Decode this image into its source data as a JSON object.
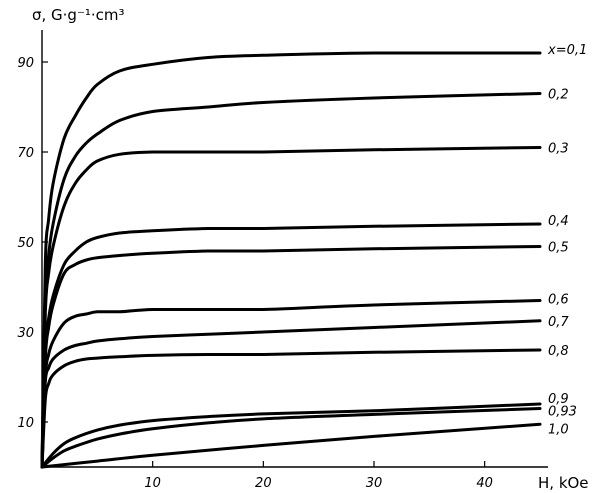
{
  "chart_data": {
    "type": "line",
    "ylabel": "σ, G·g⁻¹·cm³",
    "xlabel": "H, kOe",
    "xlim": [
      0,
      45
    ],
    "ylim": [
      0,
      100
    ],
    "x_ticks": [
      10,
      20,
      30,
      40
    ],
    "y_ticks": [
      10,
      30,
      50,
      70,
      90
    ],
    "grid": false,
    "series": [
      {
        "name": "x=0,1",
        "x": [
          0,
          0.3,
          0.6,
          1,
          2,
          3,
          4,
          5,
          7,
          10,
          15,
          20,
          30,
          45
        ],
        "y": [
          0,
          45,
          55,
          63,
          73,
          78,
          82,
          85,
          88,
          89.5,
          91,
          91.5,
          92,
          92
        ]
      },
      {
        "name": "0,2",
        "x": [
          0,
          0.3,
          0.6,
          1,
          2,
          3,
          4,
          5,
          7,
          10,
          15,
          20,
          30,
          45
        ],
        "y": [
          0,
          38,
          47,
          54,
          64,
          69,
          72,
          74,
          77,
          79,
          80,
          81,
          82,
          83
        ]
      },
      {
        "name": "0,3",
        "x": [
          0,
          0.3,
          0.6,
          1,
          2,
          3,
          4,
          5,
          7,
          10,
          15,
          20,
          30,
          45
        ],
        "y": [
          0,
          34,
          43,
          49,
          58,
          63,
          66,
          68,
          69.5,
          70,
          70,
          70,
          70.5,
          71
        ]
      },
      {
        "name": "0,4",
        "x": [
          0,
          0.3,
          0.6,
          1,
          2,
          3,
          4,
          5,
          7,
          10,
          15,
          20,
          30,
          45
        ],
        "y": [
          0,
          26,
          33,
          38,
          45,
          48,
          50,
          51,
          52,
          52.5,
          53,
          53,
          53.5,
          54
        ]
      },
      {
        "name": "0,5",
        "x": [
          0,
          0.3,
          0.6,
          1,
          2,
          3,
          4,
          5,
          7,
          10,
          15,
          20,
          30,
          45
        ],
        "y": [
          0,
          24,
          31,
          36,
          43,
          45,
          46,
          46.5,
          47,
          47.5,
          48,
          48,
          48.5,
          49
        ]
      },
      {
        "name": "0,6",
        "x": [
          0,
          0.3,
          0.6,
          1,
          2,
          3,
          4,
          5,
          7,
          10,
          15,
          20,
          30,
          45
        ],
        "y": [
          0,
          20,
          25,
          28,
          32,
          33.5,
          34,
          34.5,
          34.5,
          35,
          35,
          35,
          36,
          37
        ]
      },
      {
        "name": "0,7",
        "x": [
          0,
          0.3,
          0.6,
          1,
          2,
          3,
          4,
          5,
          7,
          10,
          15,
          20,
          30,
          45
        ],
        "y": [
          0,
          19,
          22,
          24,
          26,
          27,
          27.5,
          28,
          28.5,
          29,
          29.5,
          30,
          31,
          32.5
        ]
      },
      {
        "name": "0,8",
        "x": [
          0,
          0.3,
          0.6,
          1,
          2,
          3,
          4,
          5,
          7,
          10,
          15,
          20,
          30,
          45
        ],
        "y": [
          0,
          15,
          18.5,
          20.5,
          22.5,
          23.5,
          24,
          24.2,
          24.5,
          24.8,
          25,
          25,
          25.5,
          26
        ]
      },
      {
        "name": "0,9",
        "x": [
          0,
          1,
          2,
          3,
          5,
          7,
          10,
          15,
          20,
          30,
          45
        ],
        "y": [
          0,
          3,
          5.2,
          6.5,
          8.2,
          9.3,
          10.3,
          11.2,
          11.8,
          12.5,
          14
        ]
      },
      {
        "name": "0,93",
        "x": [
          0,
          1,
          2,
          3,
          5,
          7,
          10,
          15,
          20,
          30,
          45
        ],
        "y": [
          0,
          2,
          3.6,
          4.6,
          6.2,
          7.3,
          8.5,
          9.8,
          10.7,
          11.7,
          13
        ]
      },
      {
        "name": "1,0",
        "x": [
          0,
          5,
          10,
          20,
          30,
          45
        ],
        "y": [
          0,
          1.3,
          2.6,
          4.8,
          6.8,
          9.5
        ]
      }
    ],
    "series_labels": [
      "x=0,1",
      "0,2",
      "0,3",
      "0,4",
      "0,5",
      "0,6",
      "0,7",
      "0,8",
      "0,9",
      "0,93",
      "1,0"
    ]
  }
}
